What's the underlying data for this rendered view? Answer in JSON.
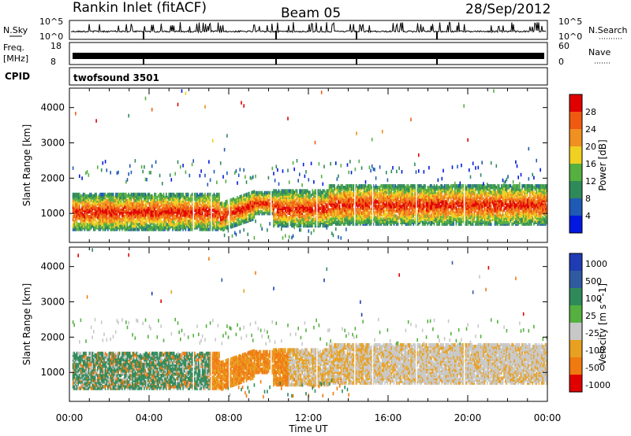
{
  "header": {
    "station": "Rankin Inlet (fitACF)",
    "beam": "Beam 05",
    "date": "28/Sep/2012"
  },
  "top_panels": {
    "nsky_label": "N.Sky",
    "nsky_top": "10^5",
    "nsky_bottom": "10^0",
    "nsearch_label": "N.Search",
    "nsearch_top": "10^5",
    "nsearch_bottom": "10^0",
    "freq_label_1": "Freq.",
    "freq_label_2": "[MHz]",
    "freq_left_top": "18",
    "freq_left_bottom": "8",
    "freq_right_top": "60",
    "freq_right_bottom": "0",
    "nave_label": "Nave",
    "cpid_label": "CPID",
    "cpid_value": "twofsound 3501"
  },
  "colors": {
    "power": [
      "#0018e0",
      "#1f5ab4",
      "#2f8a5a",
      "#55b040",
      "#f0d020",
      "#f09020",
      "#f05a10",
      "#e00000"
    ],
    "velocity": [
      "#1f3cb4",
      "#2f5aa0",
      "#2f8a5a",
      "#55b040",
      "#c8c8c8",
      "#e8a020",
      "#f07a10",
      "#e00000"
    ],
    "trace": "#000000"
  },
  "chart_data": [
    {
      "type": "heatmap",
      "title": "Power",
      "xlabel": "",
      "ylabel": "Slant Range [km]",
      "xlim": [
        "00:00",
        "24:00"
      ],
      "ylim": [
        180,
        4550
      ],
      "x_ticks": [
        "00:00",
        "04:00",
        "08:00",
        "12:00",
        "16:00",
        "20:00",
        "00:00"
      ],
      "y_ticks": [
        "1000",
        "2000",
        "3000",
        "4000"
      ],
      "colorbar_label": "Power [dB]",
      "colorbar_ticks": [
        "4",
        "8",
        "12",
        "16",
        "20",
        "24",
        "28"
      ],
      "colorbar_range": [
        0,
        32
      ]
    },
    {
      "type": "heatmap",
      "title": "Velocity",
      "xlabel": "Time UT",
      "ylabel": "Slant Range [km]",
      "xlim": [
        "00:00",
        "24:00"
      ],
      "ylim": [
        180,
        4550
      ],
      "x_ticks": [
        "00:00",
        "04:00",
        "08:00",
        "12:00",
        "16:00",
        "20:00",
        "00:00"
      ],
      "y_ticks": [
        "1000",
        "2000",
        "3000",
        "4000"
      ],
      "colorbar_label": "Velocity [m s^-1]",
      "colorbar_ticks": [
        "1000",
        "500",
        "100",
        "25",
        "-25",
        "-100",
        "-500",
        "-1000"
      ]
    }
  ]
}
